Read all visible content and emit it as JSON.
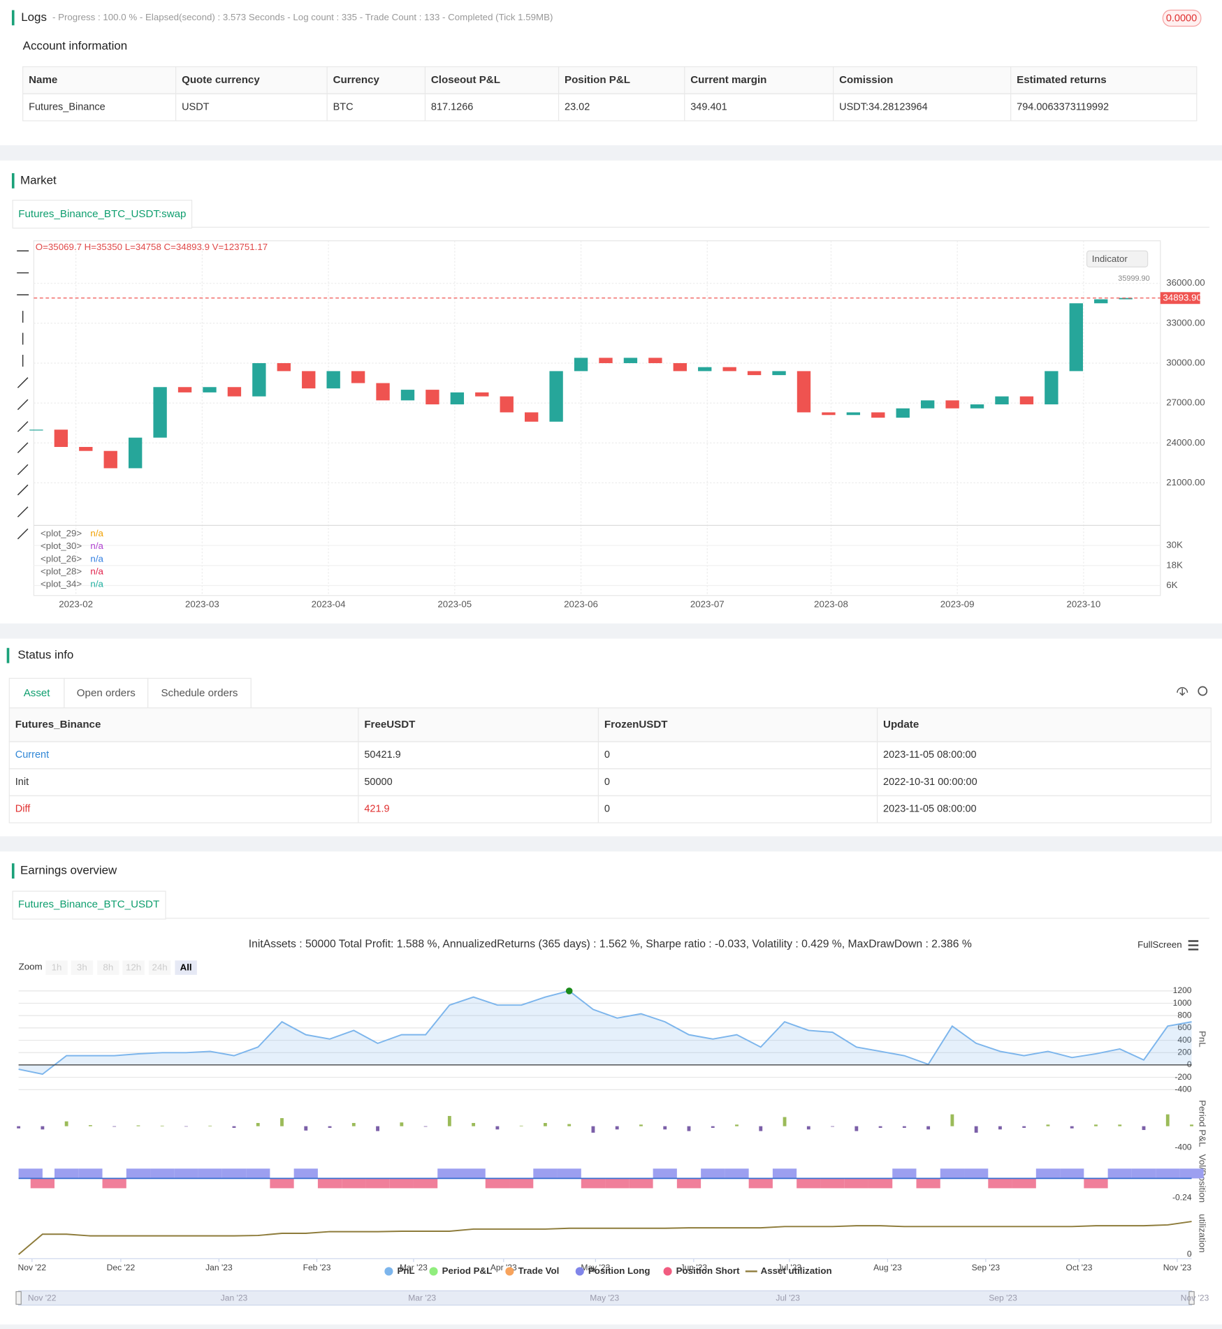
{
  "logs": {
    "title": "Logs",
    "status": "- Progress : 100.0 % - Elapsed(second) : 3.573 Seconds - Log count : 335 - Trade Count : 133 - Completed (Tick 1.59MB)",
    "badge": "0.0000"
  },
  "account": {
    "title": "Account information",
    "headers": [
      "Name",
      "Quote currency",
      "Currency",
      "Closeout P&L",
      "Position P&L",
      "Current margin",
      "Comission",
      "Estimated returns"
    ],
    "rows": [
      [
        "Futures_Binance",
        "USDT",
        "BTC",
        "817.1266",
        "23.02",
        "349.401",
        "USDT:34.28123964",
        "794.0063373119992"
      ]
    ]
  },
  "market": {
    "title": "Market",
    "tab": "Futures_Binance_BTC_USDT:swap",
    "indicator_button": "Indicator"
  },
  "status": {
    "title": "Status info",
    "tabs": [
      "Asset",
      "Open orders",
      "Schedule orders"
    ],
    "headers": [
      "Futures_Binance",
      "FreeUSDT",
      "FrozenUSDT",
      "Update"
    ],
    "rows": [
      [
        "Current",
        "50421.9",
        "0",
        "2023-11-05 08:00:00"
      ],
      [
        "Init",
        "50000",
        "0",
        "2022-10-31 00:00:00"
      ],
      [
        "Diff",
        "421.9",
        "0",
        "2023-11-05 08:00:00"
      ]
    ]
  },
  "earnings": {
    "title": "Earnings overview",
    "tab": "Futures_Binance_BTC_USDT",
    "fullscreen": "FullScreen",
    "zoom_label": "Zoom",
    "zoom_buttons": [
      "1h",
      "3h",
      "8h",
      "12h",
      "24h",
      "All"
    ],
    "navigator_labels": [
      "Nov '22",
      "Jan '23",
      "Mar '23",
      "May '23",
      "Jul '23",
      "Sep '23",
      "Nov '23"
    ]
  },
  "chart_data": [
    {
      "type": "candlestick",
      "ohlc_text": "O=35069.7 H=35350 L=34758 C=34893.9 V=123751.17",
      "annotation": "35999.90",
      "values": [
        25000,
        23700,
        23400,
        22100,
        24400,
        28200,
        27800,
        28200,
        27500,
        30000,
        29400,
        28100,
        29400,
        28500,
        27200,
        28000,
        26900,
        27800,
        27500,
        26300,
        25600,
        29400,
        30400,
        30000,
        30400,
        30000,
        29400,
        29700,
        29400,
        29100,
        29400,
        26300,
        26100,
        26300,
        25900,
        26600,
        27200,
        26600,
        26900,
        27500,
        26900,
        29400,
        34500,
        34800,
        34900
      ],
      "color_up": "#26a69a",
      "color_down": "#ef5350",
      "last_price": {
        "value": 34893.9,
        "label": "34893.90"
      },
      "xlim": [
        -0.1,
        45.4
      ],
      "xticks": [
        {
          "value": 1.6,
          "label": "2023-02"
        },
        {
          "value": 6.7,
          "label": "2023-03"
        },
        {
          "value": 11.8,
          "label": "2023-04"
        },
        {
          "value": 16.9,
          "label": "2023-05"
        },
        {
          "value": 22,
          "label": "2023-06"
        },
        {
          "value": 27.1,
          "label": "2023-07"
        },
        {
          "value": 32.1,
          "label": "2023-08"
        },
        {
          "value": 37.2,
          "label": "2023-09"
        },
        {
          "value": 42.3,
          "label": "2023-10"
        }
      ],
      "ylim": [
        17800,
        39200
      ],
      "yticks": [
        {
          "value": 21000,
          "label": "21000.00"
        },
        {
          "value": 24000,
          "label": "24000.00"
        },
        {
          "value": 27000,
          "label": "27000.00"
        },
        {
          "value": 30000,
          "label": "30000.00"
        },
        {
          "value": 33000,
          "label": "33000.00"
        },
        {
          "value": 36000,
          "label": "36000.00"
        }
      ],
      "grid": true
    },
    {
      "type": "indicator",
      "legend": [
        {
          "name": "<plot_29>",
          "value": "n/a",
          "color": "#f0a000"
        },
        {
          "name": "<plot_30>",
          "value": "n/a",
          "color": "#b040d0"
        },
        {
          "name": "<plot_26>",
          "value": "n/a",
          "color": "#2f7de1"
        },
        {
          "name": "<plot_28>",
          "value": "n/a",
          "color": "#e0204a"
        },
        {
          "name": "<plot_34>",
          "value": "n/a",
          "color": "#20b0a0"
        }
      ],
      "ylim": [
        0,
        42000
      ],
      "yticks": [
        {
          "value": 30000,
          "label": "30K"
        },
        {
          "value": 18000,
          "label": "18K"
        },
        {
          "value": 6000,
          "label": "6K"
        }
      ]
    },
    {
      "type": "line",
      "title": "InitAssets : 50000 Total Profit: 1.588 %, AnnualizedReturns (365 days) : 1.562 %, Sharpe ratio : -0.033, Volatility : 0.429 %, MaxDrawDown : 2.386 %",
      "y_label": "PnL",
      "color": "#7cb5ec",
      "values": [
        -70,
        -150,
        150,
        150,
        150,
        180,
        200,
        200,
        220,
        150,
        290,
        700,
        490,
        420,
        560,
        350,
        490,
        490,
        970,
        1100,
        970,
        970,
        1100,
        1200,
        900,
        760,
        830,
        700,
        490,
        420,
        490,
        290,
        700,
        560,
        530,
        290,
        220,
        150,
        10,
        630,
        350,
        220,
        150,
        220,
        120,
        180,
        260,
        80,
        630,
        700
      ],
      "xlim": [
        0,
        49
      ],
      "xticks": [
        {
          "value": 0.56,
          "label": "Nov '22"
        },
        {
          "value": 4.27,
          "label": "Dec '22"
        },
        {
          "value": 8.37,
          "label": "Jan '23"
        },
        {
          "value": 12.46,
          "label": "Feb '23"
        },
        {
          "value": 16.5,
          "label": "Mar '23"
        },
        {
          "value": 20.26,
          "label": "Apr '23"
        },
        {
          "value": 24.1,
          "label": "May '23"
        },
        {
          "value": 28.2,
          "label": "Jun '23"
        },
        {
          "value": 32.2,
          "label": "Jul '23"
        },
        {
          "value": 36.3,
          "label": "Aug '23"
        },
        {
          "value": 40.4,
          "label": "Sep '23"
        },
        {
          "value": 44.3,
          "label": "Oct '23"
        },
        {
          "value": 48.4,
          "label": "Nov '23"
        }
      ],
      "ylim": [
        -470,
        1310
      ],
      "yticks": [
        1200,
        1000,
        800,
        600,
        400,
        200,
        0,
        -200,
        -400
      ],
      "grid": true,
      "legend": [
        {
          "name": "PnL",
          "color": "#7cb5ec"
        },
        {
          "name": "Period P&L",
          "color": "#90ed7d"
        },
        {
          "name": "Trade Vol",
          "color": "#f7a35c"
        },
        {
          "name": "Position Long",
          "color": "#8085e9"
        },
        {
          "name": "Position Short",
          "color": "#f15c80"
        },
        {
          "name": "Asset utilization",
          "color": "#8d7b3a"
        }
      ]
    },
    {
      "type": "bar",
      "y_label": "Period P&L",
      "color_pos": "#9bbb59",
      "color_neg": "#7b5fa8",
      "values": [
        -40,
        -60,
        90,
        20,
        -10,
        15,
        10,
        -5,
        10,
        -30,
        60,
        150,
        -80,
        -30,
        60,
        -90,
        70,
        -10,
        190,
        60,
        -60,
        10,
        60,
        40,
        -120,
        -60,
        30,
        -60,
        -90,
        -30,
        30,
        -90,
        170,
        -60,
        -10,
        -90,
        -30,
        -30,
        -60,
        220,
        -120,
        -60,
        -30,
        30,
        -40,
        30,
        30,
        -70,
        220,
        30
      ],
      "xlim": [
        0,
        49
      ],
      "ylim": [
        -420,
        520
      ],
      "yticks": [
        -400
      ]
    },
    {
      "type": "position",
      "y_label": "Vol/Position",
      "color_long": "#9c9ff0",
      "color_short": "#f07f9a",
      "values": [
        0.12,
        -0.12,
        0.12,
        0.12,
        -0.12,
        0.12,
        0.12,
        0.12,
        0.12,
        0.12,
        0.12,
        -0.12,
        0.12,
        -0.12,
        -0.12,
        -0.12,
        -0.12,
        -0.12,
        0.12,
        0.12,
        -0.12,
        -0.12,
        0.12,
        0.12,
        -0.12,
        -0.12,
        -0.12,
        0.12,
        -0.12,
        0.12,
        0.12,
        -0.12,
        0.12,
        -0.12,
        -0.12,
        -0.12,
        -0.12,
        0.12,
        -0.12,
        0.12,
        0.12,
        -0.12,
        -0.12,
        0.12,
        0.12,
        -0.12,
        0.12,
        0.12,
        0.12,
        0.12
      ],
      "xlim": [
        0,
        49
      ],
      "ylim": [
        -0.31,
        0.31
      ],
      "yticks": [
        -0.24
      ]
    },
    {
      "type": "line",
      "y_label": "utilization",
      "color": "#8d7b3a",
      "values": [
        0,
        0.48,
        0.48,
        0.44,
        0.44,
        0.44,
        0.44,
        0.44,
        0.44,
        0.44,
        0.45,
        0.5,
        0.5,
        0.54,
        0.54,
        0.54,
        0.55,
        0.55,
        0.55,
        0.6,
        0.6,
        0.6,
        0.6,
        0.62,
        0.62,
        0.62,
        0.62,
        0.62,
        0.63,
        0.63,
        0.63,
        0.63,
        0.66,
        0.66,
        0.66,
        0.68,
        0.68,
        0.66,
        0.66,
        0.66,
        0.66,
        0.66,
        0.66,
        0.66,
        0.66,
        0.68,
        0.68,
        0.68,
        0.7,
        0.78
      ],
      "xlim": [
        0,
        49
      ],
      "ylim": [
        0,
        1
      ],
      "yticks": [
        0
      ]
    }
  ]
}
